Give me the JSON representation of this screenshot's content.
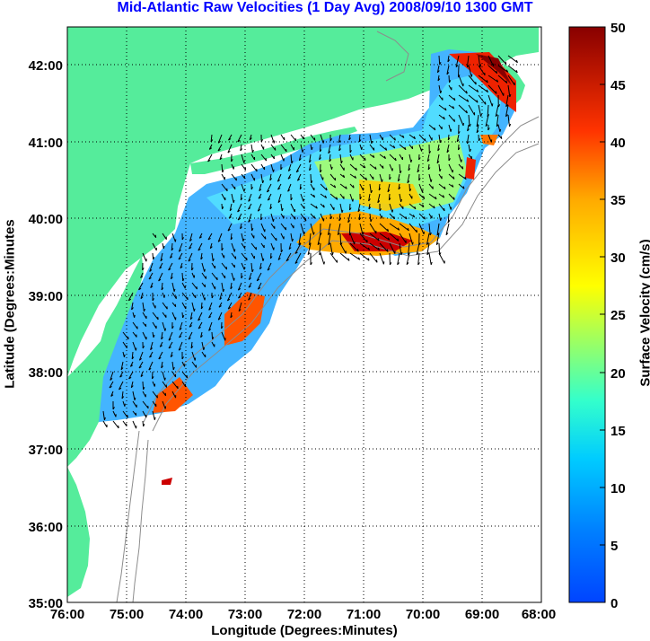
{
  "title": "Mid-Atlantic Raw Velocities (1 Day Avg) 2008/09/10 1300 GMT",
  "axes": {
    "xlabel": "Longitude (Degrees:Minutes)",
    "ylabel": "Latitude (Degrees:Minutes",
    "xticks": [
      "76:00",
      "75:00",
      "74:00",
      "73:00",
      "72:00",
      "71:00",
      "70:00",
      "69:00",
      "68:00"
    ],
    "yticks": [
      "42:00",
      "41:00",
      "40:00",
      "39:00",
      "38:00",
      "37:00",
      "36:00",
      "35:00"
    ],
    "xrange": [
      -76,
      -68
    ],
    "yrange": [
      35,
      42.5
    ],
    "grid": "dotted"
  },
  "colorbar": {
    "label": "Surface Velocity (cm/s)",
    "ticks": [
      "50",
      "45",
      "40",
      "35",
      "30",
      "25",
      "20",
      "15",
      "10",
      "5",
      "0"
    ],
    "range": [
      0,
      50
    ],
    "colormap": "jet"
  },
  "colors": {
    "title": "#0000ff",
    "land": "#55ec9b",
    "bathymetry": "#8c8c8c",
    "arrows": "#000000"
  }
}
